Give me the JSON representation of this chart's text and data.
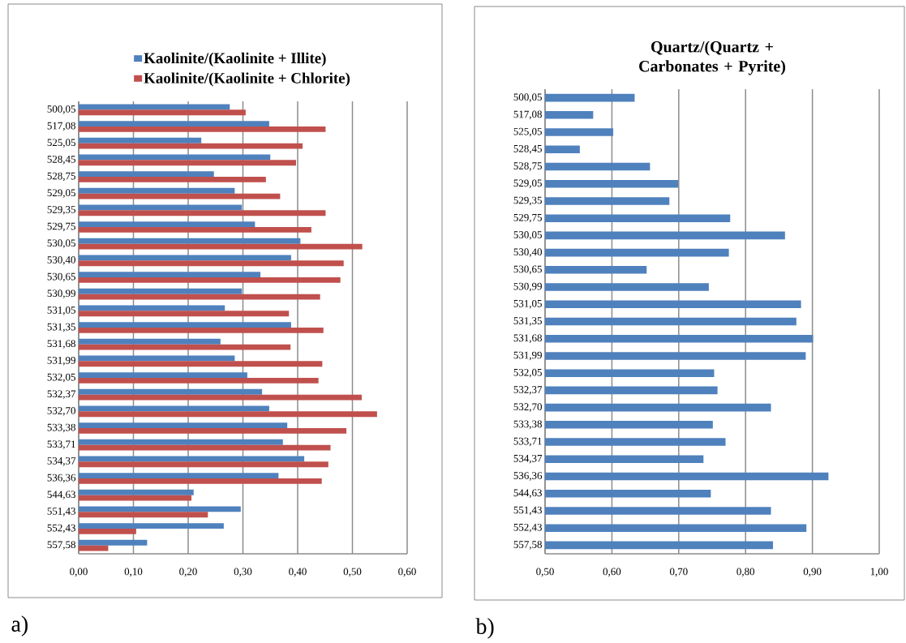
{
  "chart_data": [
    {
      "type": "bar",
      "orientation": "horizontal",
      "legend": "top",
      "grid": "x",
      "categories": [
        "500,05",
        "517,08",
        "525,05",
        "528,45",
        "528,75",
        "529,05",
        "529,35",
        "529,75",
        "530,05",
        "530,40",
        "530,65",
        "530,99",
        "531,05",
        "531,35",
        "531,68",
        "531,99",
        "532,05",
        "532,37",
        "532,70",
        "533,38",
        "533,71",
        "534,37",
        "536,36",
        "544,63",
        "551,43",
        "552,43",
        "557,58"
      ],
      "series": [
        {
          "name": "Kaolinite/(Kaolinite + Illite)",
          "color": "#4f81bd",
          "values": [
            0.276,
            0.348,
            0.224,
            0.35,
            0.247,
            0.285,
            0.298,
            0.322,
            0.405,
            0.388,
            0.332,
            0.298,
            0.267,
            0.388,
            0.259,
            0.285,
            0.308,
            0.335,
            0.348,
            0.381,
            0.373,
            0.412,
            0.365,
            0.21,
            0.296,
            0.265,
            0.125
          ]
        },
        {
          "name": "Kaolinite/(Kaolinite + Chlorite)",
          "color": "#c0504d",
          "values": [
            0.305,
            0.451,
            0.409,
            0.397,
            0.342,
            0.368,
            0.451,
            0.425,
            0.518,
            0.484,
            0.478,
            0.441,
            0.384,
            0.447,
            0.387,
            0.445,
            0.438,
            0.517,
            0.545,
            0.489,
            0.46,
            0.456,
            0.444,
            0.206,
            0.236,
            0.105,
            0.054
          ]
        }
      ],
      "xlim": [
        0,
        0.6
      ],
      "xticks": [
        {
          "value": 0,
          "label": "0,00"
        },
        {
          "value": 0.1,
          "label": "0,10"
        },
        {
          "value": 0.2,
          "label": "0,20"
        },
        {
          "value": 0.3,
          "label": "0,30"
        },
        {
          "value": 0.4,
          "label": "0,40"
        },
        {
          "value": 0.5,
          "label": "0,50"
        },
        {
          "value": 0.6,
          "label": "0,60"
        }
      ],
      "annotations": [
        "a)"
      ]
    },
    {
      "type": "bar",
      "orientation": "horizontal",
      "grid": "x",
      "title": "Quartz/(Quartz + Carbonates + Pyrite)",
      "categories": [
        "500,05",
        "517,08",
        "525,05",
        "528,45",
        "528,75",
        "529,05",
        "529,35",
        "529,75",
        "530,05",
        "530,40",
        "530,65",
        "530,99",
        "531,05",
        "531,35",
        "531,68",
        "531,99",
        "532,05",
        "532,37",
        "532,70",
        "533,38",
        "533,71",
        "534,37",
        "536,36",
        "544,63",
        "551,43",
        "552,43",
        "557,58"
      ],
      "values": [
        0.634,
        0.572,
        0.602,
        0.552,
        0.657,
        0.699,
        0.686,
        0.777,
        0.859,
        0.775,
        0.652,
        0.745,
        0.883,
        0.876,
        0.901,
        0.89,
        0.753,
        0.758,
        0.838,
        0.751,
        0.77,
        0.737,
        0.924,
        0.748,
        0.838,
        0.891,
        0.841
      ],
      "color": "#4f81bd",
      "xlim": [
        0.5,
        1.0
      ],
      "xticks": [
        {
          "value": 0.5,
          "label": "0,50"
        },
        {
          "value": 0.6,
          "label": "0,60"
        },
        {
          "value": 0.7,
          "label": "0,70"
        },
        {
          "value": 0.8,
          "label": "0,80"
        },
        {
          "value": 0.9,
          "label": "0,90"
        },
        {
          "value": 1.0,
          "label": "1,00"
        }
      ],
      "annotations": [
        "b)"
      ]
    }
  ]
}
